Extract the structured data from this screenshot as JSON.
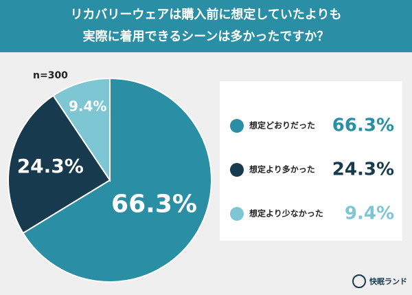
{
  "chart_data": {
    "type": "pie",
    "title": [
      "リカバリーウェアは購入前に想定していたよりも",
      "実際に着用できるシーンは多かったですか？"
    ],
    "annotation": "n=300",
    "source": "快眠ランド",
    "categories": [
      "想定どおりだった",
      "想定より多かった",
      "想定より少なかった"
    ],
    "values": [
      66.3,
      24.3,
      9.4
    ],
    "value_labels": [
      "66.3%",
      "24.3%",
      "9.4%"
    ],
    "colors": [
      "#2a8fa5",
      "#173a4e",
      "#7ec6d3"
    ],
    "legend": "right"
  }
}
